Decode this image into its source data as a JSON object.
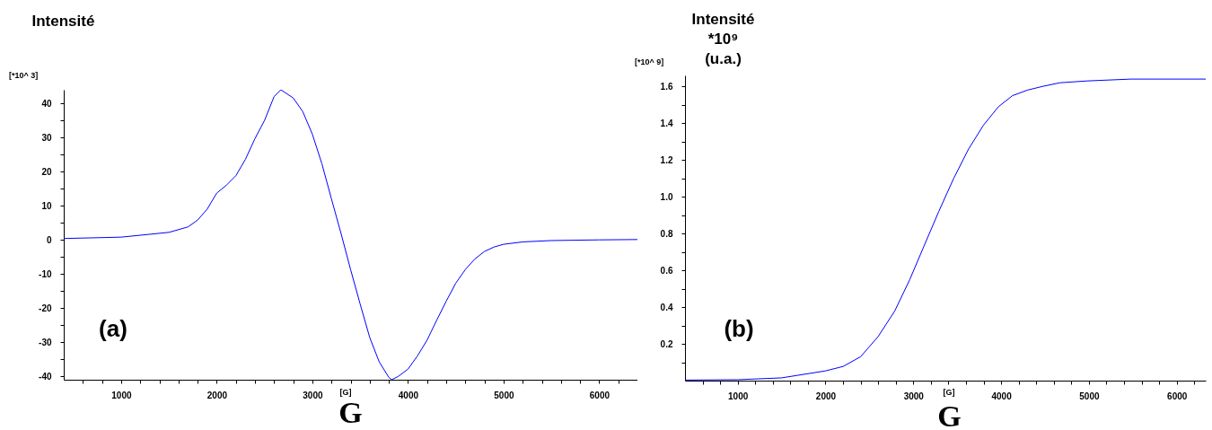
{
  "chart_data": [
    {
      "type": "line",
      "ylabel": "Intensité",
      "xlabel": "G",
      "annotations": [
        "[*10^ 3]",
        "(a)",
        "[G]"
      ],
      "x": [
        400,
        1000,
        1500,
        1700,
        1800,
        1900,
        2000,
        2100,
        2200,
        2300,
        2400,
        2500,
        2600,
        2670,
        2800,
        2900,
        3000,
        3100,
        3200,
        3300,
        3400,
        3500,
        3600,
        3700,
        3800,
        3830,
        3900,
        4000,
        4100,
        4200,
        4300,
        4400,
        4500,
        4600,
        4700,
        4800,
        4900,
        5000,
        5200,
        5500,
        6000,
        6400
      ],
      "series": [
        {
          "color": "#0000ff",
          "values": [
            0.4,
            0.8,
            2.2,
            3.8,
            5.8,
            9,
            13.7,
            16,
            18.8,
            23.6,
            29.7,
            35,
            42,
            44,
            41.6,
            37.6,
            31,
            22.3,
            12,
            1.9,
            -8.7,
            -18.8,
            -28.6,
            -35.8,
            -40.3,
            -41,
            -40,
            -37.9,
            -34,
            -29.4,
            -23.6,
            -18,
            -12.7,
            -8.7,
            -5.6,
            -3.4,
            -2.1,
            -1.3,
            -0.6,
            -0.2,
            0,
            0.1
          ]
        }
      ],
      "xlim": [
        400,
        6400
      ],
      "ylim": [
        -41,
        44
      ],
      "xticks": [
        {
          "value": 600,
          "label": null
        },
        {
          "value": 800,
          "label": null
        },
        1000,
        {
          "value": 1200,
          "label": null
        },
        {
          "value": 1400,
          "label": null
        },
        {
          "value": 1600,
          "label": null
        },
        {
          "value": 1800,
          "label": null
        },
        2000,
        {
          "value": 2200,
          "label": null
        },
        {
          "value": 2400,
          "label": null
        },
        {
          "value": 2600,
          "label": null
        },
        {
          "value": 2800,
          "label": null
        },
        3000,
        {
          "value": 3200,
          "label": null
        },
        {
          "value": 3400,
          "label": null
        },
        {
          "value": 3600,
          "label": null
        },
        {
          "value": 3800,
          "label": null
        },
        4000,
        {
          "value": 4200,
          "label": null
        },
        {
          "value": 4400,
          "label": null
        },
        {
          "value": 4600,
          "label": null
        },
        {
          "value": 4800,
          "label": null
        },
        5000,
        {
          "value": 5200,
          "label": null
        },
        {
          "value": 5400,
          "label": null
        },
        {
          "value": 5600,
          "label": null
        },
        {
          "value": 5800,
          "label": null
        },
        6000,
        {
          "value": 6200,
          "label": null
        }
      ],
      "yticks": [
        -40,
        {
          "value": -35,
          "label": null
        },
        -30,
        {
          "value": -25,
          "label": null
        },
        -20,
        {
          "value": -15,
          "label": null
        },
        -10,
        {
          "value": -5,
          "label": null
        },
        0,
        {
          "value": 5,
          "label": null
        },
        10,
        {
          "value": 15,
          "label": null
        },
        20,
        {
          "value": 25,
          "label": null
        },
        30,
        {
          "value": 35,
          "label": null
        },
        40
      ]
    },
    {
      "type": "line",
      "ylabel": "Intensité *10⁹ (u.a.)",
      "xlabel": "G",
      "annotations": [
        "[*10^ 9]",
        "(b)",
        "[G]"
      ],
      "x": [
        400,
        1000,
        1500,
        2000,
        2200,
        2400,
        2600,
        2790,
        2960,
        3120,
        3290,
        3460,
        3630,
        3800,
        3970,
        4130,
        4300,
        4470,
        4670,
        4980,
        5480,
        6330
      ],
      "series": [
        {
          "color": "#0000ff",
          "values": [
            0.003,
            0.005,
            0.015,
            0.053,
            0.077,
            0.13,
            0.24,
            0.38,
            0.55,
            0.73,
            0.92,
            1.1,
            1.26,
            1.39,
            1.49,
            1.55,
            1.58,
            1.6,
            1.62,
            1.63,
            1.64,
            1.64
          ]
        }
      ],
      "xlim": [
        400,
        6330
      ],
      "ylim": [
        0,
        1.66
      ],
      "xticks": [
        {
          "value": 600,
          "label": null
        },
        {
          "value": 800,
          "label": null
        },
        1000,
        {
          "value": 1200,
          "label": null
        },
        {
          "value": 1400,
          "label": null
        },
        {
          "value": 1600,
          "label": null
        },
        {
          "value": 1800,
          "label": null
        },
        2000,
        {
          "value": 2200,
          "label": null
        },
        {
          "value": 2400,
          "label": null
        },
        {
          "value": 2600,
          "label": null
        },
        {
          "value": 2800,
          "label": null
        },
        3000,
        {
          "value": 3200,
          "label": null
        },
        {
          "value": 3400,
          "label": null
        },
        {
          "value": 3600,
          "label": null
        },
        {
          "value": 3800,
          "label": null
        },
        4000,
        {
          "value": 4200,
          "label": null
        },
        {
          "value": 4400,
          "label": null
        },
        {
          "value": 4600,
          "label": null
        },
        {
          "value": 4800,
          "label": null
        },
        5000,
        {
          "value": 5200,
          "label": null
        },
        {
          "value": 5400,
          "label": null
        },
        {
          "value": 5600,
          "label": null
        },
        {
          "value": 5800,
          "label": null
        },
        6000,
        {
          "value": 6200,
          "label": null
        }
      ],
      "yticks": [
        {
          "value": 0.1,
          "label": null
        },
        0.2,
        {
          "value": 0.3,
          "label": null
        },
        0.4,
        {
          "value": 0.5,
          "label": null
        },
        0.6,
        {
          "value": 0.7,
          "label": null
        },
        0.8,
        {
          "value": 0.9,
          "label": null
        },
        {
          "value": 1,
          "label": "1.0"
        },
        {
          "value": 1.1,
          "label": null
        },
        1.2,
        {
          "value": 1.3,
          "label": null
        },
        1.4,
        {
          "value": 1.5,
          "label": null
        },
        1.6
      ]
    }
  ]
}
